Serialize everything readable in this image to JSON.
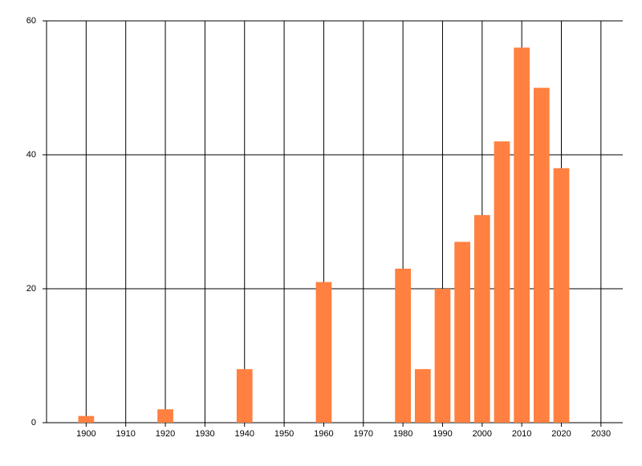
{
  "chart_data": {
    "type": "bar",
    "x": [
      1900,
      1920,
      1940,
      1960,
      1980,
      1985,
      1990,
      1995,
      2000,
      2005,
      2010,
      2015,
      2020
    ],
    "values": [
      1,
      2,
      8,
      21,
      23,
      8,
      20,
      27,
      31,
      42,
      56,
      50,
      38
    ],
    "color": "#ff8040",
    "xlim": [
      1890,
      2035.5
    ],
    "xticks": [
      1900,
      1910,
      1920,
      1930,
      1940,
      1950,
      1960,
      1970,
      1980,
      1990,
      2000,
      2010,
      2020,
      2030
    ],
    "ylim": [
      0,
      60
    ],
    "yticks": [
      0,
      20,
      40,
      60
    ],
    "grid": true
  }
}
